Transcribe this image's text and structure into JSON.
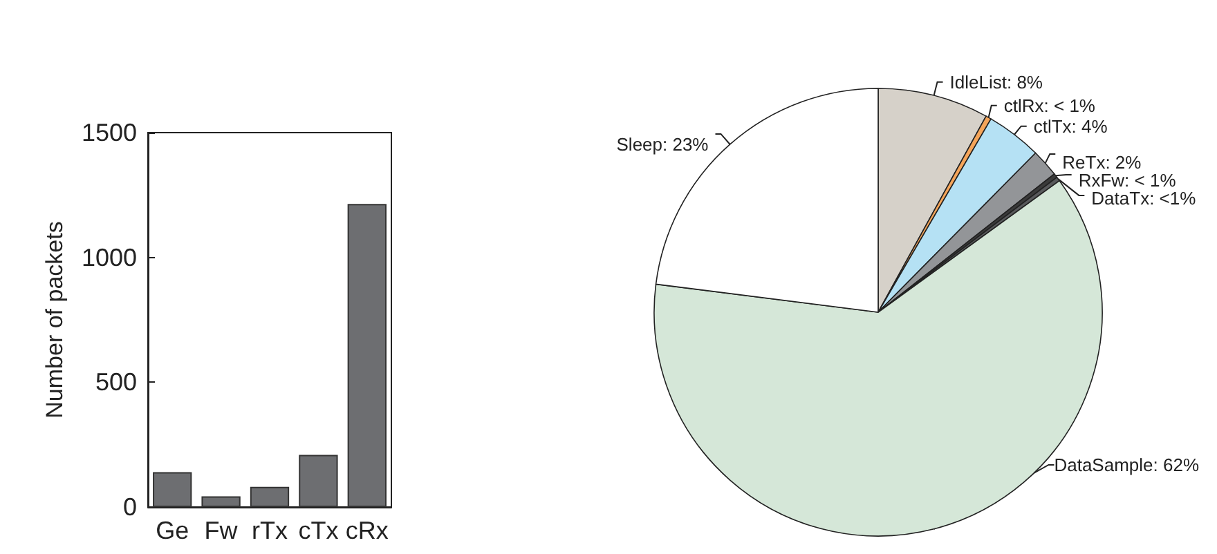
{
  "chart_data": [
    {
      "type": "bar",
      "ylabel": "Number of packets",
      "categories": [
        "Ge",
        "Fw",
        "rTx",
        "cTx",
        "cRx"
      ],
      "values": [
        140,
        43,
        81,
        209,
        1214
      ],
      "color": "#6d6e71",
      "ylim": [
        0,
        1500
      ],
      "yticks": [
        0,
        500,
        1000,
        1500
      ],
      "grid": false
    },
    {
      "type": "pie",
      "categories": [
        "IdleList",
        "ctlRx",
        "ctlTx",
        "ReTx",
        "RxFw",
        "DataTx",
        "DataSample",
        "Sleep"
      ],
      "values": [
        8,
        0.4,
        4,
        2,
        0.3,
        0.3,
        62,
        23
      ],
      "value_labels": [
        "8%",
        "< 1%",
        "4%",
        "2%",
        "< 1%",
        "<1%",
        "62%",
        "23%"
      ],
      "colors": [
        "#d6d1c9",
        "#f5a55a",
        "#b5e1f4",
        "#939598",
        "#3a3a3a",
        "#58595b",
        "#d5e7d8",
        "#ffffff"
      ]
    }
  ]
}
